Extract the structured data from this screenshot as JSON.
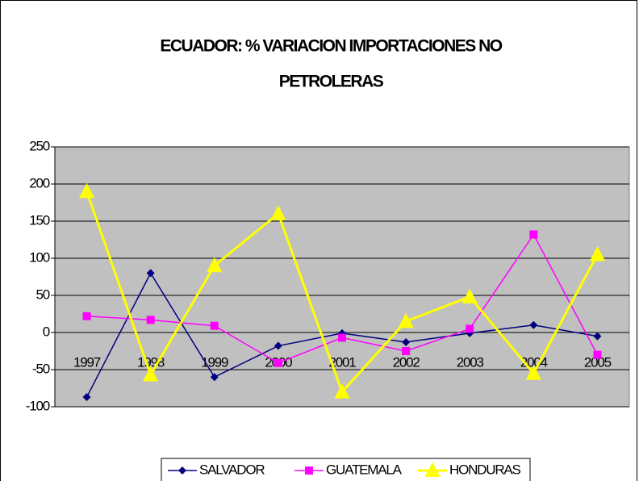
{
  "chart_data": {
    "type": "line",
    "title": [
      "ECUADOR: % VARIACION IMPORTACIONES NO",
      "PETROLERAS"
    ],
    "categories": [
      "1997",
      "1998",
      "1999",
      "2000",
      "2001",
      "2002",
      "2003",
      "2004",
      "2005"
    ],
    "series": [
      {
        "name": "SALVADOR",
        "color": "#000080",
        "marker": "diamond",
        "values": [
          -87,
          80,
          -60,
          -18,
          -1,
          -13,
          -1,
          10,
          -5
        ]
      },
      {
        "name": "GUATEMALA",
        "color": "#ff00ff",
        "marker": "square",
        "values": [
          22,
          17,
          9,
          -41,
          -7,
          -25,
          5,
          132,
          -30
        ]
      },
      {
        "name": "HONDURAS",
        "color": "#ffff00",
        "marker": "triangle",
        "values": [
          190,
          -57,
          90,
          160,
          -80,
          15,
          48,
          -55,
          105
        ]
      }
    ],
    "ylim": [
      -100,
      250
    ],
    "yticks": [
      -100,
      -50,
      0,
      50,
      100,
      150,
      200,
      250
    ],
    "grid": true,
    "plot_background": "#c0c0c0",
    "legend": "bottom"
  }
}
